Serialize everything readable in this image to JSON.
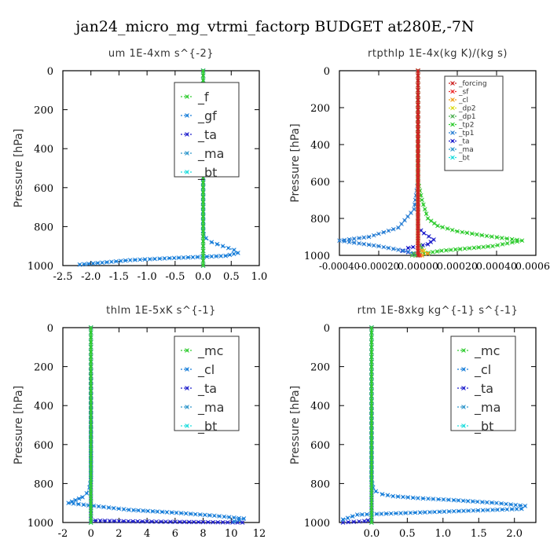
{
  "title": "jan24_micro_mg_vtrmi_factorp  BUDGET at280E,-7N",
  "chart_data": [
    {
      "type": "line",
      "title": "um   1E-4xm s^{-2}",
      "ylabel": "Pressure [hPa]",
      "xlim": [
        -2.5,
        1.0
      ],
      "ylim": [
        1000,
        0
      ],
      "xticks": [
        -2.5,
        -2.0,
        -1.5,
        -1.0,
        -0.5,
        0.0,
        0.5,
        1.0
      ],
      "xtick_labels": [
        "-2.5",
        "-2.0",
        "-1.5",
        "-1.0",
        "-0.5",
        "0.0",
        "0.5",
        "1.0"
      ],
      "yticks": [
        0,
        200,
        400,
        600,
        800,
        1000
      ],
      "ytick_labels": [
        "0",
        "200",
        "400",
        "600",
        "800",
        "1000"
      ],
      "legend": [
        "_f",
        "_gf",
        "_ta",
        "_ma",
        "_bt"
      ],
      "legend_size": "large",
      "legend_location": "top-right",
      "series": [
        {
          "name": "_f",
          "color": "#33cc33",
          "x": [
            0.0,
            0.0
          ],
          "y": [
            0,
            1000
          ]
        },
        {
          "name": "_gf",
          "color": "#1a7fd9",
          "x": [
            0.0,
            0.0,
            0.01,
            0.05,
            0.15,
            0.35,
            0.55,
            0.62,
            0.4,
            -0.6,
            -1.3,
            -1.8,
            -2.2
          ],
          "y": [
            0,
            820,
            840,
            860,
            880,
            900,
            920,
            935,
            950,
            962,
            972,
            985,
            995
          ]
        },
        {
          "name": "_ta",
          "color": "#2222cc",
          "x": [
            0.0,
            0.0
          ],
          "y": [
            0,
            1000
          ]
        },
        {
          "name": "_ma",
          "color": "#3399cc",
          "x": [
            0.0,
            0.0
          ],
          "y": [
            0,
            1000
          ]
        },
        {
          "name": "_bt",
          "color": "#22dddd",
          "x": [
            0.0,
            0.0
          ],
          "y": [
            0,
            1000
          ]
        }
      ]
    },
    {
      "type": "line",
      "title": "rtpthlp   1E-4x(kg K)/(kg s)",
      "ylabel": "Pressure [hPa]",
      "xlim": [
        -0.0004,
        0.0006
      ],
      "ylim": [
        1000,
        0
      ],
      "xticks": [
        -0.0004,
        -0.0002,
        0.0,
        0.0002,
        0.0004,
        0.0006
      ],
      "xtick_labels": [
        "-0.00040",
        "-0.00020",
        "0.00000",
        "0.00020",
        "0.00040",
        "0.00060"
      ],
      "yticks": [
        0,
        200,
        400,
        600,
        800,
        1000
      ],
      "ytick_labels": [
        "0",
        "200",
        "400",
        "600",
        "800",
        "1000"
      ],
      "legend": [
        "_forcing",
        "_sf",
        "_cl",
        "_dp2",
        "_dp1",
        "_tp2",
        "_tp1",
        "_ta",
        "_ma",
        "_bt"
      ],
      "legend_size": "small",
      "legend_location": "top-right",
      "series": [
        {
          "name": "_forcing",
          "color": "#cc2222",
          "x": [
            0.0,
            0.0
          ],
          "y": [
            0,
            1000
          ]
        },
        {
          "name": "_sf",
          "color": "#ee3333",
          "x": [
            0.0,
            0.0,
            0.0,
            1e-05
          ],
          "y": [
            0,
            960,
            980,
            1000
          ]
        },
        {
          "name": "_cl",
          "color": "#f0a020",
          "x": [
            0.0,
            0.0,
            2e-05,
            5e-05,
            2e-05
          ],
          "y": [
            0,
            950,
            975,
            990,
            1000
          ]
        },
        {
          "name": "_dp2",
          "color": "#dddd22",
          "x": [
            0.0,
            0.0,
            3e-05,
            5e-05,
            2e-05
          ],
          "y": [
            0,
            960,
            975,
            990,
            1000
          ]
        },
        {
          "name": "_dp1",
          "color": "#4caf50",
          "x": [
            0.0,
            0.0,
            1e-05,
            2e-05,
            3e-05,
            -2e-05,
            -3e-05
          ],
          "y": [
            0,
            930,
            945,
            960,
            975,
            990,
            1000
          ]
        },
        {
          "name": "_tp2",
          "color": "#33cc33",
          "x": [
            0.0,
            0.0,
            2e-05,
            5e-05,
            0.0001,
            0.0002,
            0.00035,
            0.00053,
            0.00038,
            0.00012,
            3e-05,
            -1e-05
          ],
          "y": [
            0,
            600,
            700,
            800,
            840,
            870,
            895,
            920,
            950,
            975,
            990,
            1000
          ]
        },
        {
          "name": "_tp1",
          "color": "#2a7fd4",
          "x": [
            0.0,
            0.0,
            -2e-05,
            -0.0001,
            -0.00025,
            -0.0004,
            -0.0002,
            -5e-05,
            0.0
          ],
          "y": [
            0,
            600,
            750,
            850,
            900,
            920,
            950,
            980,
            1000
          ]
        },
        {
          "name": "_ta",
          "color": "#2222cc",
          "x": [
            0.0,
            0.0,
            3e-05,
            8e-05,
            5e-05,
            -5e-05,
            -8e-05,
            -2e-05,
            0.0
          ],
          "y": [
            0,
            850,
            880,
            915,
            940,
            960,
            975,
            990,
            1000
          ]
        },
        {
          "name": "_ma",
          "color": "#3399cc",
          "x": [
            0.0,
            0.0
          ],
          "y": [
            0,
            1000
          ]
        },
        {
          "name": "_bt",
          "color": "#22dddd",
          "x": [
            0.0,
            0.0
          ],
          "y": [
            0,
            1000
          ]
        }
      ]
    },
    {
      "type": "line",
      "title": "thlm   1E-5xK s^{-1}",
      "ylabel": "Pressure [hPa]",
      "xlim": [
        -2,
        12
      ],
      "ylim": [
        1000,
        0
      ],
      "xticks": [
        -2,
        0,
        2,
        4,
        6,
        8,
        10,
        12
      ],
      "xtick_labels": [
        "-2",
        "0",
        "2",
        "4",
        "6",
        "8",
        "10",
        "12"
      ],
      "yticks": [
        0,
        200,
        400,
        600,
        800,
        1000
      ],
      "ytick_labels": [
        "0",
        "200",
        "400",
        "600",
        "800",
        "1000"
      ],
      "legend": [
        "_mc",
        "_cl",
        "_ta",
        "_ma",
        "_bt"
      ],
      "legend_size": "large",
      "legend_location": "top-right",
      "series": [
        {
          "name": "_mc",
          "color": "#33cc33",
          "x": [
            0.0,
            0.0
          ],
          "y": [
            0,
            1000
          ]
        },
        {
          "name": "_cl",
          "color": "#1a7fd9",
          "x": [
            0.0,
            0.0,
            -0.1,
            -0.3,
            -0.6,
            -1.1,
            -1.6,
            2.7,
            6.1,
            8.8,
            10.9,
            10.2
          ],
          "y": [
            0,
            780,
            820,
            850,
            870,
            885,
            900,
            935,
            950,
            965,
            980,
            995
          ]
        },
        {
          "name": "_ta",
          "color": "#2222cc",
          "x": [
            0.0,
            0.0,
            2.0,
            5.0,
            8.0,
            10.8
          ],
          "y": [
            0,
            990,
            993,
            996,
            998,
            1000
          ]
        },
        {
          "name": "_ma",
          "color": "#3399cc",
          "x": [
            0.0,
            0.0
          ],
          "y": [
            0,
            1000
          ]
        },
        {
          "name": "_bt",
          "color": "#22dddd",
          "x": [
            0.0,
            0.0
          ],
          "y": [
            0,
            1000
          ]
        }
      ]
    },
    {
      "type": "line",
      "title": "rtm   1E-8xkg kg^{-1} s^{-1}",
      "ylabel": "Pressure [hPa]",
      "xlim": [
        -0.45,
        2.3
      ],
      "ylim": [
        1000,
        0
      ],
      "xticks": [
        0.0,
        0.5,
        1.0,
        1.5,
        2.0
      ],
      "xtick_labels": [
        "0.0",
        "0.5",
        "1.0",
        "1.5",
        "2.0"
      ],
      "yticks": [
        0,
        200,
        400,
        600,
        800,
        1000
      ],
      "ytick_labels": [
        "0",
        "200",
        "400",
        "600",
        "800",
        "1000"
      ],
      "legend": [
        "_mc",
        "_cl",
        "_ta",
        "_ma",
        "_bt"
      ],
      "legend_size": "large",
      "legend_location": "top-right",
      "series": [
        {
          "name": "_mc",
          "color": "#33cc33",
          "x": [
            0.0,
            0.0
          ],
          "y": [
            0,
            1000
          ]
        },
        {
          "name": "_cl",
          "color": "#1a7fd9",
          "x": [
            0.0,
            0.0,
            0.02,
            0.06,
            0.15,
            0.3,
            0.65,
            1.15,
            1.75,
            2.15,
            2.1,
            -0.2,
            -0.4
          ],
          "y": [
            0,
            780,
            820,
            840,
            855,
            865,
            875,
            885,
            900,
            915,
            930,
            960,
            985
          ]
        },
        {
          "name": "_ta",
          "color": "#2222cc",
          "x": [
            0.0,
            0.0,
            -0.1,
            -0.4
          ],
          "y": [
            0,
            985,
            993,
            1000
          ]
        },
        {
          "name": "_ma",
          "color": "#3399cc",
          "x": [
            0.0,
            0.0
          ],
          "y": [
            0,
            1000
          ]
        },
        {
          "name": "_bt",
          "color": "#22dddd",
          "x": [
            0.0,
            0.0
          ],
          "y": [
            0,
            1000
          ]
        }
      ]
    }
  ]
}
